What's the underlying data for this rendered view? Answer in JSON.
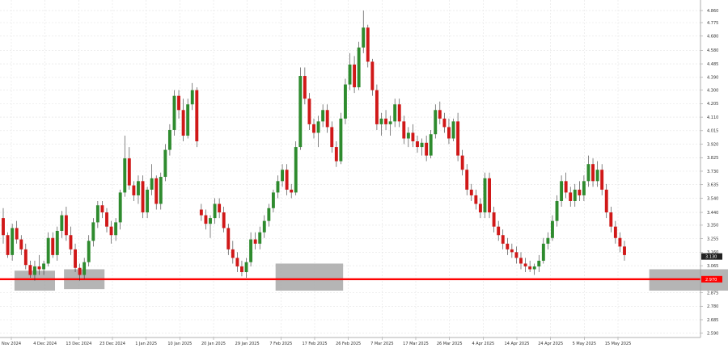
{
  "chart_data": {
    "type": "candlestick",
    "title": "",
    "grid": true,
    "colors": {
      "bull": "#2e8b2e",
      "bear": "#d01818",
      "support": "#ff0000",
      "zone": "#a8a8a8",
      "current_price_bg": "#222222"
    },
    "y_ticks": [
      "4.860",
      "4.775",
      "4.680",
      "4.580",
      "4.485",
      "4.390",
      "4.300",
      "4.205",
      "4.110",
      "4.015",
      "3.920",
      "3.825",
      "3.730",
      "3.635",
      "3.540",
      "3.440",
      "3.350",
      "3.255",
      "3.160",
      "3.065",
      "2.970",
      "2.875",
      "2.780",
      "2.685",
      "2.590"
    ],
    "ylim": [
      2.56,
      4.9
    ],
    "x_ticks": [
      "Nov 2024",
      "4 Dec 2024",
      "13 Dec 2024",
      "23 Dec 2024",
      "1 Jan 2025",
      "10 Jan 2025",
      "20 Jan 2025",
      "29 Jan 2025",
      "7 Feb 2025",
      "17 Feb 2025",
      "26 Feb 2025",
      "7 Mar 2025",
      "17 Mar 2025",
      "26 Mar 2025",
      "4 Apr 2025",
      "14 Apr 2025",
      "24 Apr 2025",
      "5 May 2025",
      "15 May 2025"
    ],
    "current_price": "3.130",
    "support_price": "2.970",
    "support_level": 2.97,
    "zones": [
      {
        "from_bar": 3,
        "to_bar": 11,
        "low": 2.89,
        "high": 3.03
      },
      {
        "from_bar": 14,
        "to_bar": 22,
        "low": 2.9,
        "high": 3.04
      },
      {
        "from_bar": 61,
        "to_bar": 75,
        "low": 2.89,
        "high": 3.08
      },
      {
        "from_bar": 144,
        "to_bar": 162,
        "low": 2.89,
        "high": 3.04
      }
    ],
    "candles": [
      [
        3.4,
        3.47,
        3.22,
        3.28
      ],
      [
        3.28,
        3.3,
        3.12,
        3.14
      ],
      [
        3.14,
        3.36,
        3.1,
        3.33
      ],
      [
        3.33,
        3.38,
        3.22,
        3.25
      ],
      [
        3.25,
        3.28,
        3.14,
        3.18
      ],
      [
        3.18,
        3.22,
        3.04,
        3.07
      ],
      [
        3.07,
        3.1,
        2.98,
        3.0
      ],
      [
        3.0,
        3.1,
        2.96,
        3.06
      ],
      [
        3.06,
        3.14,
        3.0,
        3.04
      ],
      [
        3.04,
        3.1,
        3.0,
        3.08
      ],
      [
        3.08,
        3.3,
        3.06,
        3.26
      ],
      [
        3.26,
        3.3,
        3.12,
        3.14
      ],
      [
        3.14,
        3.34,
        3.1,
        3.31
      ],
      [
        3.31,
        3.45,
        3.26,
        3.42
      ],
      [
        3.42,
        3.48,
        3.24,
        3.28
      ],
      [
        3.28,
        3.34,
        3.14,
        3.18
      ],
      [
        3.18,
        3.22,
        3.02,
        3.05
      ],
      [
        3.05,
        3.08,
        2.96,
        3.0
      ],
      [
        3.0,
        3.12,
        2.97,
        3.09
      ],
      [
        3.09,
        3.28,
        3.06,
        3.24
      ],
      [
        3.24,
        3.4,
        3.2,
        3.37
      ],
      [
        3.37,
        3.52,
        3.33,
        3.49
      ],
      [
        3.49,
        3.52,
        3.4,
        3.44
      ],
      [
        3.44,
        3.47,
        3.3,
        3.34
      ],
      [
        3.34,
        3.38,
        3.22,
        3.28
      ],
      [
        3.28,
        3.4,
        3.24,
        3.37
      ],
      [
        3.37,
        3.6,
        3.32,
        3.58
      ],
      [
        3.58,
        3.98,
        3.55,
        3.82
      ],
      [
        3.82,
        3.9,
        3.6,
        3.63
      ],
      [
        3.63,
        3.66,
        3.52,
        3.56
      ],
      [
        3.56,
        3.7,
        3.5,
        3.66
      ],
      [
        3.66,
        3.7,
        3.4,
        3.44
      ],
      [
        3.44,
        3.62,
        3.4,
        3.6
      ],
      [
        3.6,
        3.78,
        3.56,
        3.68
      ],
      [
        3.68,
        3.7,
        3.46,
        3.5
      ],
      [
        3.5,
        3.72,
        3.46,
        3.69
      ],
      [
        3.69,
        3.92,
        3.66,
        3.88
      ],
      [
        3.88,
        4.06,
        3.84,
        4.02
      ],
      [
        4.02,
        4.3,
        3.98,
        4.26
      ],
      [
        4.26,
        4.3,
        4.1,
        4.16
      ],
      [
        4.16,
        4.24,
        3.94,
        3.98
      ],
      [
        3.98,
        4.24,
        3.96,
        4.2
      ],
      [
        4.2,
        4.35,
        4.16,
        4.3
      ],
      [
        4.3,
        4.32,
        3.9,
        3.94
      ],
      [
        3.46,
        3.5,
        3.38,
        3.42
      ],
      [
        3.42,
        3.46,
        3.32,
        3.36
      ],
      [
        3.36,
        3.42,
        3.26,
        3.4
      ],
      [
        3.4,
        3.54,
        3.36,
        3.5
      ],
      [
        3.5,
        3.54,
        3.4,
        3.44
      ],
      [
        3.44,
        3.48,
        3.3,
        3.33
      ],
      [
        3.33,
        3.36,
        3.14,
        3.18
      ],
      [
        3.18,
        3.24,
        3.08,
        3.12
      ],
      [
        3.12,
        3.16,
        3.02,
        3.06
      ],
      [
        3.06,
        3.1,
        2.99,
        3.02
      ],
      [
        3.02,
        3.12,
        2.98,
        3.09
      ],
      [
        3.09,
        3.3,
        3.06,
        3.25
      ],
      [
        3.25,
        3.3,
        3.18,
        3.22
      ],
      [
        3.22,
        3.34,
        3.18,
        3.3
      ],
      [
        3.3,
        3.42,
        3.26,
        3.38
      ],
      [
        3.38,
        3.5,
        3.34,
        3.47
      ],
      [
        3.47,
        3.6,
        3.44,
        3.58
      ],
      [
        3.58,
        3.7,
        3.54,
        3.66
      ],
      [
        3.66,
        3.78,
        3.62,
        3.74
      ],
      [
        3.74,
        3.78,
        3.56,
        3.6
      ],
      [
        3.6,
        3.64,
        3.54,
        3.58
      ],
      [
        3.58,
        3.94,
        3.56,
        3.9
      ],
      [
        3.9,
        4.46,
        3.88,
        4.4
      ],
      [
        4.4,
        4.46,
        4.2,
        4.24
      ],
      [
        4.24,
        4.28,
        4.02,
        4.06
      ],
      [
        4.06,
        4.1,
        3.96,
        4.0
      ],
      [
        4.0,
        4.12,
        3.9,
        4.08
      ],
      [
        4.08,
        4.2,
        4.04,
        4.16
      ],
      [
        4.16,
        4.2,
        4.0,
        4.04
      ],
      [
        4.04,
        4.08,
        3.86,
        3.9
      ],
      [
        3.9,
        3.94,
        3.76,
        3.8
      ],
      [
        3.8,
        4.14,
        3.78,
        4.1
      ],
      [
        4.1,
        4.38,
        4.06,
        4.34
      ],
      [
        4.34,
        4.56,
        4.3,
        4.48
      ],
      [
        4.48,
        4.54,
        4.28,
        4.32
      ],
      [
        4.32,
        4.64,
        4.3,
        4.6
      ],
      [
        4.6,
        4.86,
        4.56,
        4.74
      ],
      [
        4.74,
        4.76,
        4.46,
        4.5
      ],
      [
        4.5,
        4.52,
        4.26,
        4.3
      ],
      [
        4.3,
        4.34,
        4.02,
        4.06
      ],
      [
        4.06,
        4.14,
        3.98,
        4.1
      ],
      [
        4.1,
        4.16,
        4.02,
        4.06
      ],
      [
        4.06,
        4.12,
        3.98,
        4.08
      ],
      [
        4.08,
        4.24,
        4.04,
        4.2
      ],
      [
        4.2,
        4.24,
        4.04,
        4.08
      ],
      [
        4.08,
        4.12,
        3.92,
        3.96
      ],
      [
        3.96,
        4.04,
        3.9,
        4.0
      ],
      [
        4.0,
        4.06,
        3.9,
        3.94
      ],
      [
        3.94,
        3.98,
        3.86,
        3.9
      ],
      [
        3.9,
        3.96,
        3.84,
        3.93
      ],
      [
        3.93,
        3.98,
        3.8,
        3.84
      ],
      [
        3.84,
        4.02,
        3.82,
        3.99
      ],
      [
        3.99,
        4.2,
        3.96,
        4.16
      ],
      [
        4.16,
        4.22,
        4.06,
        4.1
      ],
      [
        4.1,
        4.14,
        4.0,
        4.04
      ],
      [
        4.04,
        4.1,
        3.92,
        3.96
      ],
      [
        3.96,
        4.1,
        3.94,
        4.08
      ],
      [
        4.08,
        4.14,
        3.8,
        3.84
      ],
      [
        3.84,
        3.88,
        3.7,
        3.74
      ],
      [
        3.74,
        3.78,
        3.56,
        3.6
      ],
      [
        3.6,
        3.64,
        3.52,
        3.56
      ],
      [
        3.56,
        3.6,
        3.46,
        3.5
      ],
      [
        3.5,
        3.54,
        3.4,
        3.44
      ],
      [
        3.44,
        3.72,
        3.4,
        3.68
      ],
      [
        3.68,
        3.72,
        3.4,
        3.44
      ],
      [
        3.44,
        3.48,
        3.3,
        3.34
      ],
      [
        3.34,
        3.38,
        3.24,
        3.28
      ],
      [
        3.28,
        3.32,
        3.18,
        3.22
      ],
      [
        3.22,
        3.26,
        3.14,
        3.18
      ],
      [
        3.18,
        3.22,
        3.12,
        3.16
      ],
      [
        3.16,
        3.2,
        3.08,
        3.12
      ],
      [
        3.12,
        3.16,
        3.04,
        3.08
      ],
      [
        3.08,
        3.12,
        3.02,
        3.06
      ],
      [
        3.06,
        3.1,
        3.02,
        3.04
      ],
      [
        3.04,
        3.08,
        3.0,
        3.06
      ],
      [
        3.06,
        3.14,
        3.02,
        3.1
      ],
      [
        3.1,
        3.26,
        3.08,
        3.22
      ],
      [
        3.22,
        3.3,
        3.18,
        3.26
      ],
      [
        3.26,
        3.42,
        3.24,
        3.38
      ],
      [
        3.38,
        3.56,
        3.34,
        3.52
      ],
      [
        3.52,
        3.7,
        3.48,
        3.66
      ],
      [
        3.66,
        3.72,
        3.54,
        3.58
      ],
      [
        3.58,
        3.62,
        3.48,
        3.52
      ],
      [
        3.52,
        3.64,
        3.48,
        3.6
      ],
      [
        3.6,
        3.66,
        3.52,
        3.56
      ],
      [
        3.56,
        3.7,
        3.52,
        3.66
      ],
      [
        3.66,
        3.84,
        3.62,
        3.78
      ],
      [
        3.78,
        3.82,
        3.62,
        3.66
      ],
      [
        3.66,
        3.8,
        3.62,
        3.74
      ],
      [
        3.74,
        3.78,
        3.56,
        3.6
      ],
      [
        3.6,
        3.64,
        3.4,
        3.44
      ],
      [
        3.44,
        3.48,
        3.3,
        3.34
      ],
      [
        3.34,
        3.38,
        3.22,
        3.26
      ],
      [
        3.26,
        3.3,
        3.16,
        3.2
      ],
      [
        3.2,
        3.24,
        3.1,
        3.14
      ]
    ]
  }
}
